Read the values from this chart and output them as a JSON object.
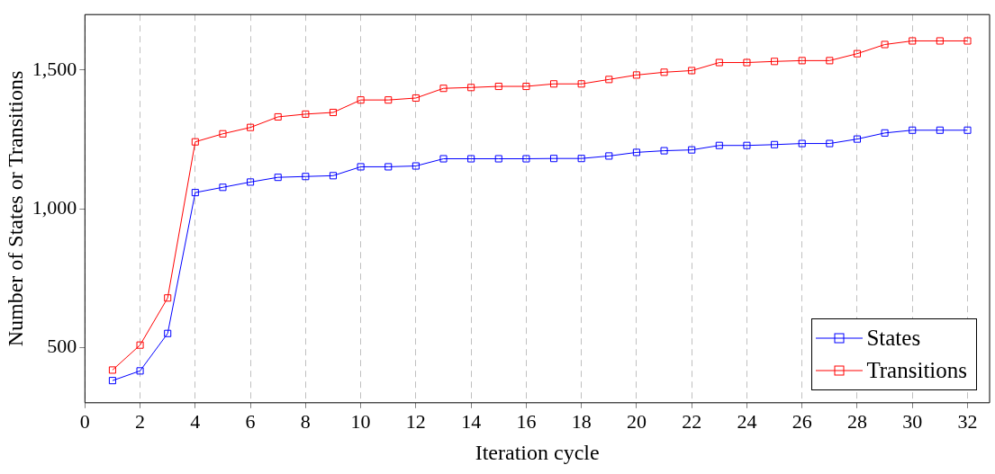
{
  "chart_data": {
    "type": "line",
    "xlabel": "Iteration cycle",
    "ylabel": "Number of States or Transitions",
    "x": [
      1,
      2,
      3,
      4,
      5,
      6,
      7,
      8,
      9,
      10,
      11,
      12,
      13,
      14,
      15,
      16,
      17,
      18,
      19,
      20,
      21,
      22,
      23,
      24,
      25,
      26,
      27,
      28,
      29,
      30,
      31,
      32
    ],
    "series": [
      {
        "name": "States",
        "color": "#0000ff",
        "values": [
          380,
          415,
          550,
          1058,
          1077,
          1096,
          1113,
          1116,
          1119,
          1151,
          1151,
          1154,
          1180,
          1180,
          1180,
          1180,
          1181,
          1181,
          1190,
          1203,
          1209,
          1212,
          1228,
          1228,
          1231,
          1235,
          1235,
          1251,
          1273,
          1283,
          1283,
          1283
        ]
      },
      {
        "name": "Transitions",
        "color": "#ff0000",
        "values": [
          418,
          508,
          678,
          1241,
          1270,
          1293,
          1331,
          1341,
          1347,
          1392,
          1392,
          1399,
          1434,
          1437,
          1441,
          1441,
          1450,
          1450,
          1466,
          1482,
          1492,
          1498,
          1527,
          1527,
          1531,
          1534,
          1534,
          1559,
          1592,
          1605,
          1605,
          1605
        ]
      }
    ],
    "xlim": [
      0,
      32.8
    ],
    "xticks": [
      0,
      2,
      4,
      6,
      8,
      10,
      12,
      14,
      16,
      18,
      20,
      22,
      24,
      26,
      28,
      30,
      32
    ],
    "ylim": [
      300,
      1700
    ],
    "yticks": [
      500,
      {
        "value": 1000,
        "label": "1,000"
      },
      {
        "value": 1500,
        "label": "1,500"
      }
    ],
    "grid": "x",
    "legend": "bottom right",
    "marker": "square",
    "line_style": "solid"
  }
}
